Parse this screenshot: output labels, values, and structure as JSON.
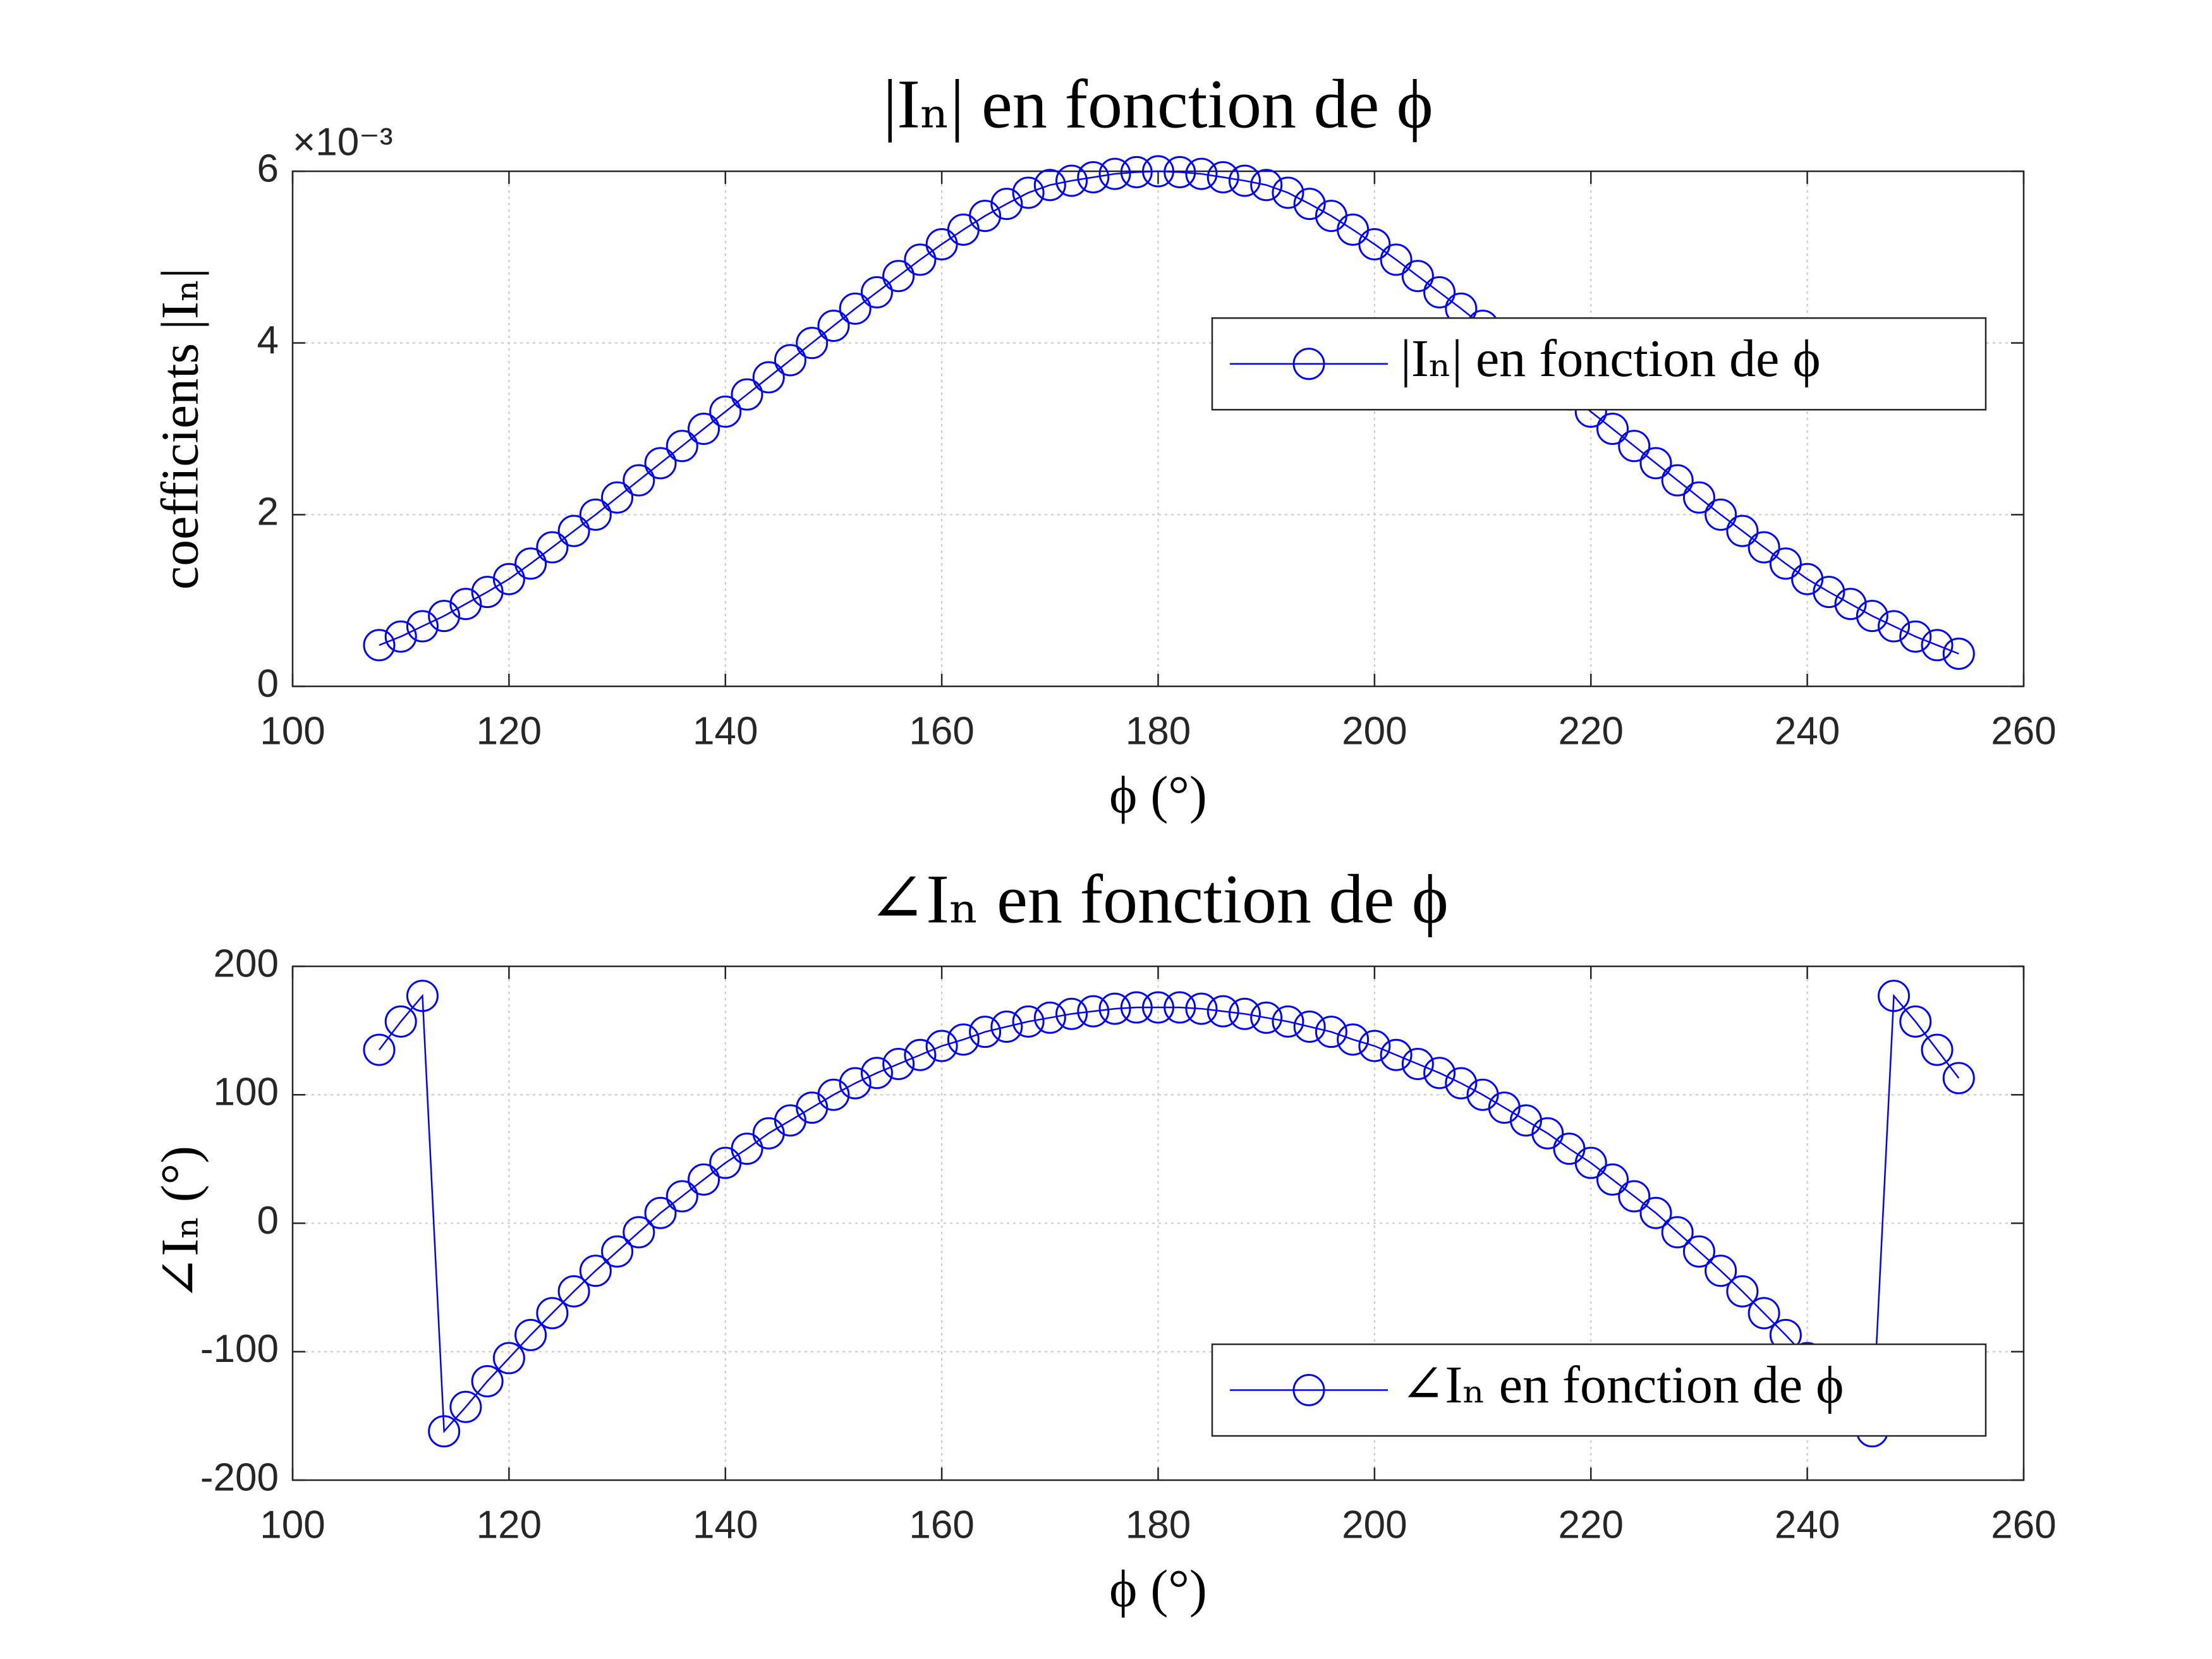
{
  "chart_data": [
    {
      "type": "line",
      "title": "|Iₙ| en fonction de ϕ",
      "xlabel": "ϕ (°)",
      "ylabel": "coefficients |Iₙ|",
      "y_multiplier": "×10⁻³",
      "x": [
        108,
        110,
        112,
        114,
        116,
        118,
        120,
        122,
        124,
        126,
        128,
        130,
        132,
        134,
        136,
        138,
        140,
        142,
        144,
        146,
        148,
        150,
        152,
        154,
        156,
        158,
        160,
        162,
        164,
        166,
        168,
        170,
        172,
        174,
        176,
        178,
        180,
        182,
        184,
        186,
        188,
        190,
        192,
        194,
        196,
        198,
        200,
        202,
        204,
        206,
        208,
        210,
        212,
        214,
        216,
        218,
        220,
        222,
        224,
        226,
        228,
        230,
        232,
        234,
        236,
        238,
        240,
        242,
        244,
        246,
        248,
        250,
        252,
        254
      ],
      "series": [
        {
          "name": "|Iₙ| en fonction de ϕ",
          "color": "#0000ff",
          "marker": "o",
          "values": [
            0.48,
            0.58,
            0.7,
            0.82,
            0.96,
            1.1,
            1.25,
            1.43,
            1.62,
            1.81,
            2.0,
            2.2,
            2.4,
            2.6,
            2.8,
            3.0,
            3.2,
            3.4,
            3.6,
            3.8,
            4.0,
            4.2,
            4.4,
            4.59,
            4.78,
            4.97,
            5.15,
            5.32,
            5.48,
            5.62,
            5.75,
            5.84,
            5.89,
            5.93,
            5.97,
            5.99,
            6.0,
            5.99,
            5.97,
            5.93,
            5.89,
            5.84,
            5.75,
            5.62,
            5.48,
            5.32,
            5.15,
            4.97,
            4.78,
            4.59,
            4.4,
            4.2,
            4.0,
            3.8,
            3.6,
            3.4,
            3.2,
            3.0,
            2.8,
            2.6,
            2.4,
            2.2,
            2.0,
            1.81,
            1.62,
            1.43,
            1.25,
            1.1,
            0.96,
            0.82,
            0.7,
            0.58,
            0.48,
            0.38
          ]
        }
      ],
      "xlim": [
        100,
        260
      ],
      "xticks": [
        100,
        120,
        140,
        160,
        180,
        200,
        220,
        240,
        260
      ],
      "ylim": [
        0,
        6
      ],
      "yticks": [
        0,
        2,
        4,
        6
      ],
      "grid": true,
      "legend": "east"
    },
    {
      "type": "line",
      "title": "∠Iₙ en fonction de ϕ",
      "xlabel": "ϕ (°)",
      "ylabel": "∠Iₙ (°)",
      "x": [
        108,
        110,
        112,
        114,
        116,
        118,
        120,
        122,
        124,
        126,
        128,
        130,
        132,
        134,
        136,
        138,
        140,
        142,
        144,
        146,
        148,
        150,
        152,
        154,
        156,
        158,
        160,
        162,
        164,
        166,
        168,
        170,
        172,
        174,
        176,
        178,
        180,
        182,
        184,
        186,
        188,
        190,
        192,
        194,
        196,
        198,
        200,
        202,
        204,
        206,
        208,
        210,
        212,
        214,
        216,
        218,
        220,
        222,
        224,
        226,
        228,
        230,
        232,
        234,
        236,
        238,
        240,
        242,
        244,
        246,
        248,
        250,
        252,
        254
      ],
      "series": [
        {
          "name": "∠Iₙ en fonction de ϕ",
          "color": "#0000ff",
          "marker": "o",
          "values": [
            135,
            157,
            177,
            -162,
            -143,
            -123,
            -105,
            -87,
            -70,
            -53,
            -37,
            -22,
            -7,
            8,
            21,
            34,
            47,
            58,
            70,
            80,
            90,
            100,
            109,
            117,
            124,
            131,
            138,
            143,
            149,
            153,
            157,
            160,
            163,
            165,
            167,
            168,
            168,
            168,
            167,
            165,
            163,
            160,
            157,
            153,
            149,
            143,
            138,
            131,
            124,
            117,
            109,
            100,
            90,
            80,
            70,
            58,
            47,
            34,
            21,
            8,
            -7,
            -22,
            -37,
            -53,
            -70,
            -87,
            -105,
            -123,
            -143,
            -162,
            177,
            157,
            135,
            113
          ]
        }
      ],
      "xlim": [
        100,
        260
      ],
      "xticks": [
        100,
        120,
        140,
        160,
        180,
        200,
        220,
        240,
        260
      ],
      "ylim": [
        -200,
        200
      ],
      "yticks": [
        -200,
        -100,
        0,
        100,
        200
      ],
      "grid": true,
      "legend": "southeast"
    }
  ]
}
